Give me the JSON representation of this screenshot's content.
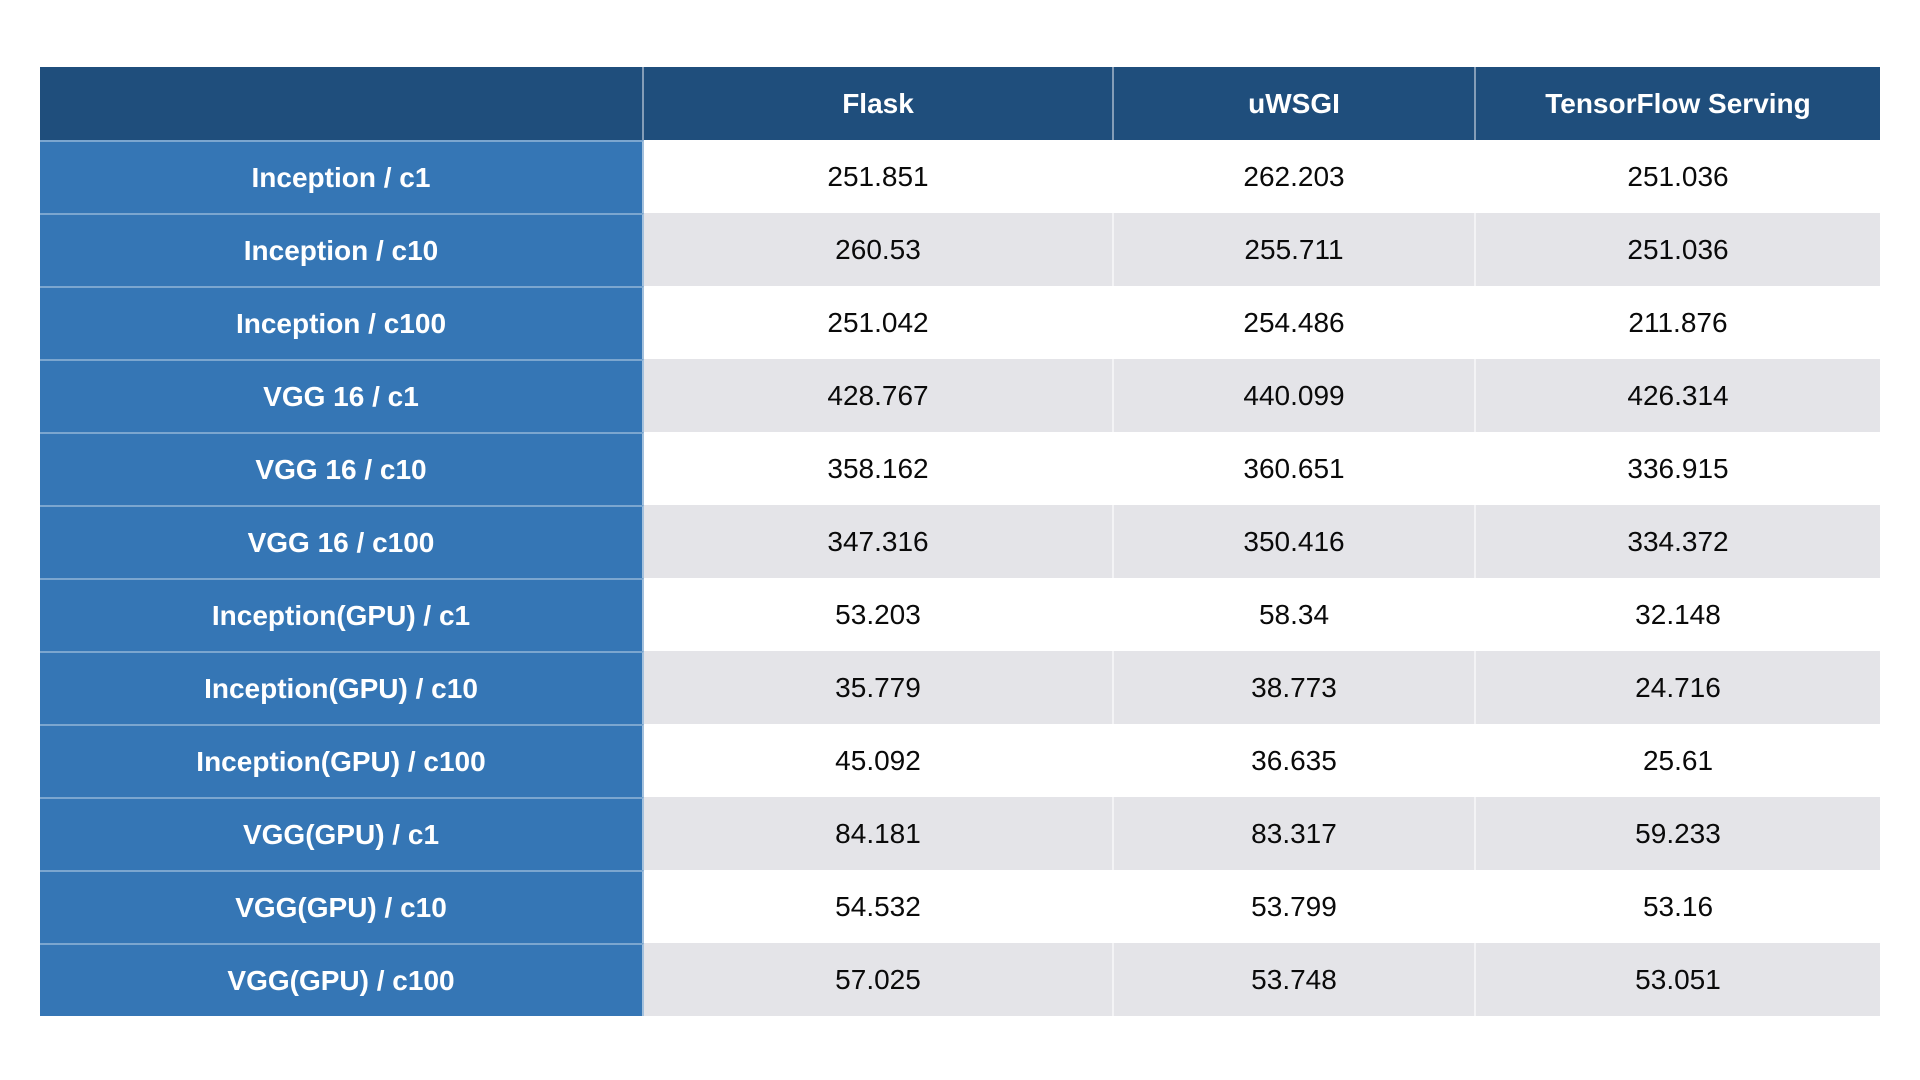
{
  "table": {
    "columns": [
      "",
      "Flask",
      "uWSGI",
      "TensorFlow Serving"
    ],
    "rows": [
      {
        "label": "Inception / c1",
        "values": [
          "251.851",
          "262.203",
          "251.036"
        ]
      },
      {
        "label": "Inception / c10",
        "values": [
          "260.53",
          "255.711",
          "251.036"
        ]
      },
      {
        "label": "Inception / c100",
        "values": [
          "251.042",
          "254.486",
          "211.876"
        ]
      },
      {
        "label": "VGG 16 / c1",
        "values": [
          "428.767",
          "440.099",
          "426.314"
        ]
      },
      {
        "label": "VGG 16 / c10",
        "values": [
          "358.162",
          "360.651",
          "336.915"
        ]
      },
      {
        "label": "VGG 16 / c100",
        "values": [
          "347.316",
          "350.416",
          "334.372"
        ]
      },
      {
        "label": "Inception(GPU) / c1",
        "values": [
          "53.203",
          "58.34",
          "32.148"
        ]
      },
      {
        "label": "Inception(GPU) / c10",
        "values": [
          "35.779",
          "38.773",
          "24.716"
        ]
      },
      {
        "label": "Inception(GPU) / c100",
        "values": [
          "45.092",
          "36.635",
          "25.61"
        ]
      },
      {
        "label": "VGG(GPU) / c1",
        "values": [
          "84.181",
          "83.317",
          "59.233"
        ]
      },
      {
        "label": "VGG(GPU) / c10",
        "values": [
          "54.532",
          "53.799",
          "53.16"
        ]
      },
      {
        "label": "VGG(GPU) / c100",
        "values": [
          "57.025",
          "53.748",
          "53.051"
        ]
      }
    ]
  },
  "chart_data": {
    "type": "table",
    "columns": [
      "",
      "Flask",
      "uWSGI",
      "TensorFlow Serving"
    ],
    "rows": [
      [
        "Inception / c1",
        251.851,
        262.203,
        251.036
      ],
      [
        "Inception / c10",
        260.53,
        255.711,
        251.036
      ],
      [
        "Inception / c100",
        251.042,
        254.486,
        211.876
      ],
      [
        "VGG 16 / c1",
        428.767,
        440.099,
        426.314
      ],
      [
        "VGG 16 / c10",
        358.162,
        360.651,
        336.915
      ],
      [
        "VGG 16 / c100",
        347.316,
        350.416,
        334.372
      ],
      [
        "Inception(GPU) / c1",
        53.203,
        58.34,
        32.148
      ],
      [
        "Inception(GPU) / c10",
        35.779,
        38.773,
        24.716
      ],
      [
        "Inception(GPU) / c100",
        45.092,
        36.635,
        25.61
      ],
      [
        "VGG(GPU) / c1",
        84.181,
        83.317,
        59.233
      ],
      [
        "VGG(GPU) / c10",
        54.532,
        53.799,
        53.16
      ],
      [
        "VGG(GPU) / c100",
        57.025,
        53.748,
        53.051
      ]
    ],
    "layout": {
      "striped_rows": true,
      "stripe_color": "#E4E4E8",
      "header_background": "#1F4E7C",
      "row_label_background": "#3576B5"
    }
  },
  "colors": {
    "header_background": "#1F4E7C",
    "row_label_background": "#3576B5",
    "stripe_row_background": "#E4E4E8",
    "plain_row_background": "#FFFFFF",
    "header_text": "#FFFFFF",
    "data_text": "#0A0A0A"
  }
}
